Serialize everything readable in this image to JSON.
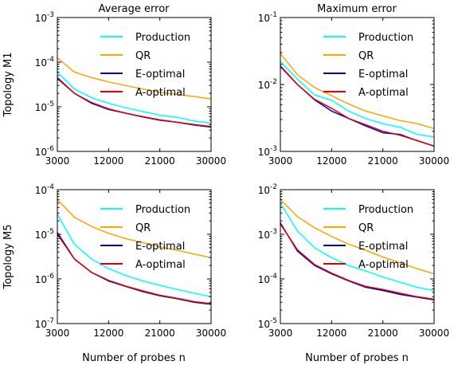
{
  "figure": {
    "column_titles": [
      "Average error",
      "Maximum error"
    ],
    "row_labels": [
      "Topology M1",
      "Topology M5"
    ],
    "xlabel": "Number of probes n",
    "legend": [
      {
        "name": "Production",
        "color": "#00ffff"
      },
      {
        "name": "QR",
        "color": "#ffa500"
      },
      {
        "name": "E-optimal",
        "color": "#0000cc"
      },
      {
        "name": "A-optimal",
        "color": "#dd0000"
      }
    ]
  },
  "chart_data": [
    {
      "type": "line",
      "title": "Average error",
      "ylabel": "Topology M1",
      "xlabel": "",
      "x": [
        3000,
        6000,
        9000,
        12000,
        15000,
        18000,
        21000,
        24000,
        27000,
        30000
      ],
      "xticks": [
        3000,
        12000,
        21000,
        30000
      ],
      "xlim": [
        3000,
        30000
      ],
      "yscale": "log",
      "ylim": [
        1e-06,
        0.001
      ],
      "yticks": [
        {
          "exp": -6,
          "label": "10",
          "sup": "-6"
        },
        {
          "exp": -5,
          "label": "10",
          "sup": "-5"
        },
        {
          "exp": -4,
          "label": "10",
          "sup": "-4"
        },
        {
          "exp": -3,
          "label": "10",
          "sup": "-3"
        }
      ],
      "series": [
        {
          "name": "Production",
          "color": "#00ffff",
          "values": [
            6e-05,
            2.5e-05,
            1.6e-05,
            1.2e-05,
            9.5e-06,
            7.8e-06,
            6.5e-06,
            5.8e-06,
            4.8e-06,
            4.3e-06
          ]
        },
        {
          "name": "QR",
          "color": "#ffa500",
          "values": [
            0.000125,
            6e-05,
            4.5e-05,
            3.6e-05,
            3e-05,
            2.5e-05,
            2.1e-05,
            1.9e-05,
            1.7e-05,
            1.5e-05
          ]
        },
        {
          "name": "E-optimal",
          "color": "#0000cc",
          "values": [
            4.5e-05,
            2e-05,
            1.2e-05,
            8.7e-06,
            7.2e-06,
            5.9e-06,
            5e-06,
            4.5e-06,
            3.9e-06,
            3.5e-06
          ]
        },
        {
          "name": "A-optimal",
          "color": "#dd0000",
          "values": [
            4.3e-05,
            2e-05,
            1.25e-05,
            9e-06,
            7.2e-06,
            6e-06,
            5.1e-06,
            4.5e-06,
            4e-06,
            3.6e-06
          ]
        }
      ]
    },
    {
      "type": "line",
      "title": "Maximum error",
      "ylabel": "",
      "xlabel": "",
      "x": [
        3000,
        6000,
        9000,
        12000,
        15000,
        18000,
        21000,
        24000,
        27000,
        30000
      ],
      "xticks": [
        3000,
        12000,
        21000,
        30000
      ],
      "xlim": [
        3000,
        30000
      ],
      "yscale": "log",
      "ylim": [
        0.001,
        0.1
      ],
      "yticks": [
        {
          "exp": -3,
          "label": "10",
          "sup": "-3"
        },
        {
          "exp": -2,
          "label": "10",
          "sup": "-2"
        },
        {
          "exp": -1,
          "label": "10",
          "sup": "-1"
        }
      ],
      "series": [
        {
          "name": "Production",
          "color": "#00ffff",
          "values": [
            0.022,
            0.012,
            0.007,
            0.0058,
            0.004,
            0.0031,
            0.0026,
            0.0023,
            0.0018,
            0.00165
          ]
        },
        {
          "name": "QR",
          "color": "#ffa500",
          "values": [
            0.029,
            0.014,
            0.009,
            0.0068,
            0.0051,
            0.004,
            0.0034,
            0.0029,
            0.0026,
            0.0022
          ]
        },
        {
          "name": "E-optimal",
          "color": "#0000cc",
          "values": [
            0.019,
            0.01,
            0.0059,
            0.004,
            0.0031,
            0.0024,
            0.0019,
            0.0018,
            0.00145,
            0.0012
          ]
        },
        {
          "name": "A-optimal",
          "color": "#dd0000",
          "values": [
            0.0185,
            0.01,
            0.006,
            0.0044,
            0.0031,
            0.0025,
            0.002,
            0.00175,
            0.00145,
            0.0012
          ]
        }
      ]
    },
    {
      "type": "line",
      "title": "",
      "ylabel": "Topology M5",
      "xlabel": "Number of probes n",
      "x": [
        3000,
        6000,
        9000,
        12000,
        15000,
        18000,
        21000,
        24000,
        27000,
        30000
      ],
      "xticks": [
        3000,
        12000,
        21000,
        30000
      ],
      "xlim": [
        3000,
        30000
      ],
      "yscale": "log",
      "ylim": [
        1e-07,
        0.0001
      ],
      "yticks": [
        {
          "exp": -7,
          "label": "10",
          "sup": "-7"
        },
        {
          "exp": -6,
          "label": "10",
          "sup": "-6"
        },
        {
          "exp": -5,
          "label": "10",
          "sup": "-5"
        },
        {
          "exp": -4,
          "label": "10",
          "sup": "-4"
        }
      ],
      "series": [
        {
          "name": "Production",
          "color": "#00ffff",
          "values": [
            2.8e-05,
            6e-06,
            2.8e-06,
            1.7e-06,
            1.2e-06,
            9e-07,
            7.2e-07,
            5.8e-07,
            4.8e-07,
            4e-07
          ]
        },
        {
          "name": "QR",
          "color": "#ffa500",
          "values": [
            6e-05,
            2.4e-05,
            1.5e-05,
            1.05e-05,
            8e-06,
            6.5e-06,
            5.2e-06,
            4.4e-06,
            3.6e-06,
            3e-06
          ]
        },
        {
          "name": "E-optimal",
          "color": "#0000cc",
          "values": [
            1.1e-05,
            2.8e-06,
            1.4e-06,
            9e-07,
            6.8e-07,
            5.2e-07,
            4.2e-07,
            3.6e-07,
            3e-07,
            2.7e-07
          ]
        },
        {
          "name": "A-optimal",
          "color": "#dd0000",
          "values": [
            1e-05,
            2.8e-06,
            1.4e-06,
            9.3e-07,
            6.9e-07,
            5.4e-07,
            4.3e-07,
            3.7e-07,
            3.1e-07,
            2.8e-07
          ]
        }
      ]
    },
    {
      "type": "line",
      "title": "",
      "ylabel": "",
      "xlabel": "Number of probes n",
      "x": [
        3000,
        6000,
        9000,
        12000,
        15000,
        18000,
        21000,
        24000,
        27000,
        30000
      ],
      "xticks": [
        3000,
        12000,
        21000,
        30000
      ],
      "xlim": [
        3000,
        30000
      ],
      "yscale": "log",
      "ylim": [
        1e-05,
        0.01
      ],
      "yticks": [
        {
          "exp": -5,
          "label": "10",
          "sup": "-5"
        },
        {
          "exp": -4,
          "label": "10",
          "sup": "-4"
        },
        {
          "exp": -3,
          "label": "10",
          "sup": "-3"
        },
        {
          "exp": -2,
          "label": "10",
          "sup": "-2"
        }
      ],
      "series": [
        {
          "name": "Production",
          "color": "#00ffff",
          "values": [
            0.005,
            0.0012,
            0.0005,
            0.0003,
            0.0002,
            0.00015,
            0.00011,
            8.5e-05,
            6.5e-05,
            5.5e-05
          ]
        },
        {
          "name": "QR",
          "color": "#ffa500",
          "values": [
            0.006,
            0.0025,
            0.0014,
            0.0009,
            0.0006,
            0.00044,
            0.00031,
            0.00023,
            0.00017,
            0.00013
          ]
        },
        {
          "name": "E-optimal",
          "color": "#0000cc",
          "values": [
            0.0018,
            0.00042,
            0.0002,
            0.00013,
            9e-05,
            6.5e-05,
            5.5e-05,
            4.5e-05,
            3.9e-05,
            3.4e-05
          ]
        },
        {
          "name": "A-optimal",
          "color": "#dd0000",
          "values": [
            0.0017,
            0.00045,
            0.00021,
            0.000135,
            9.2e-05,
            6.8e-05,
            5.8e-05,
            4.8e-05,
            4e-05,
            3.5e-05
          ]
        }
      ]
    }
  ]
}
